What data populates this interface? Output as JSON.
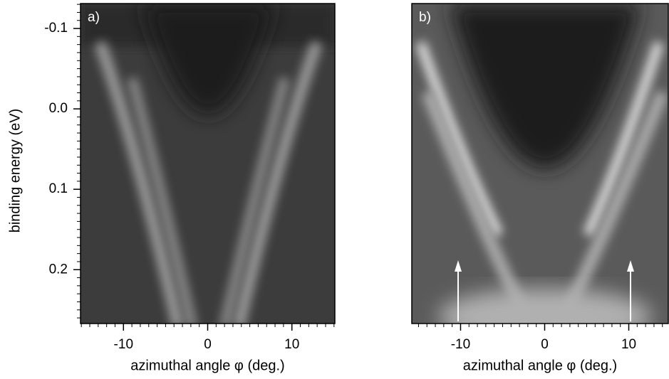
{
  "chart_data": [
    {
      "type": "heatmap",
      "label": "a)",
      "xlabel": "azimuthal angle φ  (deg.)",
      "ylabel": "binding energy (eV)",
      "xlim": [
        -15.1,
        15.1
      ],
      "ylim": [
        -0.131,
        0.267
      ],
      "yreverse": true,
      "xticks": [
        -10,
        0,
        10
      ],
      "yticks": [
        -0.1,
        {
          "value": 0,
          "label": "0.0"
        },
        0.1,
        0.2
      ],
      "xminor": 1,
      "yminor": 0.01
    },
    {
      "type": "heatmap",
      "label": "b)",
      "xlabel": "azimuthal angle φ  (deg.)",
      "xlim": [
        -15.8,
        14.7
      ],
      "ylim": [
        -0.131,
        0.267
      ],
      "yreverse": true,
      "xticks": [
        -10,
        0,
        10
      ],
      "xminor": 1
    }
  ]
}
